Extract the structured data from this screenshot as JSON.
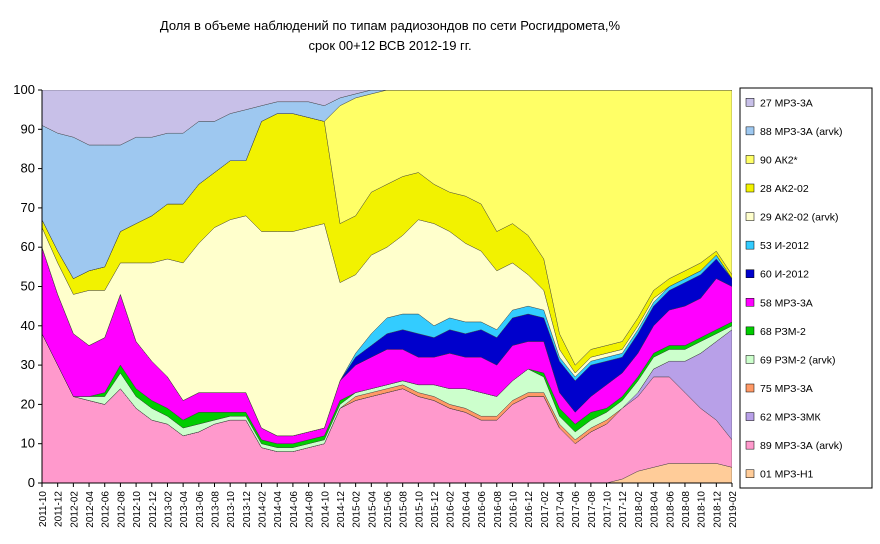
{
  "chart_data": {
    "type": "stacked_area",
    "title": "Доля в объеме наблюдений по типам радиозондов по сети Росгидромета,%",
    "subtitle": "срок 00+12 ВСВ 2012-19 гг.",
    "categories": [
      "2011-10",
      "2011-12",
      "2012-02",
      "2012-04",
      "2012-06",
      "2012-08",
      "2012-10",
      "2012-12",
      "2013-02",
      "2013-04",
      "2013-06",
      "2013-08",
      "2013-10",
      "2013-12",
      "2014-02",
      "2014-04",
      "2014-06",
      "2014-08",
      "2014-10",
      "2014-12",
      "2015-02",
      "2015-04",
      "2015-06",
      "2015-08",
      "2015-10",
      "2015-12",
      "2016-02",
      "2016-04",
      "2016-06",
      "2016-08",
      "2016-10",
      "2016-12",
      "2017-02",
      "2017-04",
      "2017-06",
      "2017-08",
      "2017-10",
      "2017-12",
      "2018-02",
      "2018-04",
      "2018-06",
      "2018-08",
      "2018-10",
      "2018-12",
      "2019-02"
    ],
    "ylim": [
      0,
      100
    ],
    "yticks": [
      0,
      10,
      20,
      30,
      40,
      50,
      60,
      70,
      80,
      90,
      100
    ],
    "legend": "right",
    "series": [
      {
        "name": "01 МРЗ-Н1",
        "color": "#ffcc99",
        "values": [
          0,
          0,
          0,
          0,
          0,
          0,
          0,
          0,
          0,
          0,
          0,
          0,
          0,
          0,
          0,
          0,
          0,
          0,
          0,
          0,
          0,
          0,
          0,
          0,
          0,
          0,
          0,
          0,
          0,
          0,
          0,
          0,
          0,
          0,
          0,
          0,
          0,
          1,
          3,
          4,
          5,
          5,
          5,
          5,
          4
        ]
      },
      {
        "name": "89 МРЗ-3А (arvk)",
        "color": "#ff99cc",
        "values": [
          38,
          30,
          22,
          21,
          20,
          24,
          19,
          16,
          15,
          12,
          13,
          15,
          16,
          16,
          9,
          8,
          8,
          9,
          10,
          19,
          21,
          22,
          23,
          24,
          22,
          21,
          19,
          18,
          16,
          16,
          20,
          22,
          22,
          14,
          10,
          13,
          15,
          18,
          19,
          23,
          22,
          18,
          14,
          11,
          7
        ]
      },
      {
        "name": "62 МРЗ-3МК",
        "color": "#b8a0e8",
        "values": [
          0,
          0,
          0,
          0,
          0,
          0,
          0,
          0,
          0,
          0,
          0,
          0,
          0,
          0,
          0,
          0,
          0,
          0,
          0,
          0,
          0,
          0,
          0,
          0,
          0,
          0,
          0,
          0,
          0,
          0,
          0,
          0,
          0,
          0,
          0,
          0,
          0,
          0,
          1,
          2,
          4,
          8,
          14,
          20,
          28
        ]
      },
      {
        "name": "75 МРЗ-3А",
        "color": "#ff9966",
        "values": [
          0,
          0,
          0,
          0,
          0,
          0,
          0,
          0,
          0,
          0,
          0,
          0,
          0,
          0,
          0,
          0,
          0,
          0,
          0,
          0,
          1,
          1,
          1,
          1,
          1,
          1,
          1,
          1,
          1,
          1,
          1,
          1,
          1,
          1,
          1,
          1,
          1,
          0,
          0,
          0,
          0,
          0,
          0,
          0,
          0
        ]
      },
      {
        "name": "69 РЗМ-2 (arvk)",
        "color": "#ccffcc",
        "values": [
          0,
          0,
          0,
          1,
          2,
          4,
          3,
          3,
          2,
          2,
          2,
          1,
          1,
          1,
          1,
          1,
          1,
          1,
          1,
          1,
          1,
          1,
          1,
          1,
          2,
          3,
          4,
          5,
          6,
          5,
          5,
          6,
          4,
          2,
          2,
          2,
          2,
          2,
          3,
          3,
          3,
          3,
          3,
          2,
          1
        ]
      },
      {
        "name": "68 РЗМ-2",
        "color": "#00cc00",
        "values": [
          0,
          0,
          0,
          0,
          1,
          2,
          2,
          2,
          2,
          2,
          3,
          2,
          1,
          1,
          1,
          1,
          1,
          1,
          1,
          1,
          0,
          0,
          0,
          0,
          0,
          0,
          0,
          0,
          0,
          0,
          0,
          0,
          1,
          2,
          2,
          2,
          1,
          1,
          1,
          1,
          1,
          1,
          1,
          1,
          1
        ]
      },
      {
        "name": "58 МРЗ-3А",
        "color": "#ff00ff",
        "values": [
          22,
          18,
          16,
          13,
          14,
          18,
          12,
          10,
          8,
          5,
          5,
          5,
          5,
          5,
          3,
          2,
          2,
          2,
          2,
          5,
          7,
          8,
          9,
          8,
          7,
          7,
          9,
          8,
          9,
          8,
          9,
          7,
          8,
          4,
          3,
          4,
          6,
          6,
          6,
          7,
          9,
          10,
          10,
          13,
          9
        ]
      },
      {
        "name": "60 И-2012",
        "color": "#0000cc",
        "values": [
          0,
          0,
          0,
          0,
          0,
          0,
          0,
          0,
          0,
          0,
          0,
          0,
          0,
          0,
          0,
          0,
          0,
          0,
          0,
          0,
          2,
          3,
          4,
          5,
          6,
          5,
          6,
          6,
          7,
          7,
          7,
          7,
          6,
          8,
          8,
          8,
          6,
          4,
          5,
          5,
          5,
          6,
          6,
          5,
          2
        ]
      },
      {
        "name": "53 И-2012",
        "color": "#33ccff",
        "values": [
          0,
          0,
          0,
          0,
          0,
          0,
          0,
          0,
          0,
          0,
          0,
          0,
          0,
          0,
          0,
          0,
          0,
          0,
          0,
          0,
          1,
          3,
          4,
          4,
          5,
          3,
          3,
          3,
          2,
          2,
          2,
          2,
          2,
          1,
          1,
          1,
          1,
          1,
          1,
          1,
          1,
          1,
          1,
          1,
          0
        ]
      },
      {
        "name": "29 АК2-02 (arvk)",
        "color": "#ffffcc",
        "values": [
          5,
          8,
          10,
          14,
          12,
          8,
          20,
          25,
          30,
          35,
          38,
          42,
          44,
          45,
          50,
          52,
          52,
          52,
          52,
          25,
          20,
          20,
          18,
          20,
          24,
          26,
          22,
          20,
          18,
          15,
          12,
          8,
          5,
          2,
          1,
          1,
          1,
          1,
          1,
          1,
          0,
          0,
          0,
          0,
          0
        ]
      },
      {
        "name": "28 АК2-02",
        "color": "#f2f200",
        "values": [
          2,
          3,
          4,
          5,
          6,
          8,
          10,
          12,
          14,
          15,
          15,
          14,
          15,
          14,
          28,
          30,
          30,
          28,
          26,
          15,
          15,
          16,
          16,
          15,
          12,
          10,
          10,
          12,
          12,
          10,
          10,
          10,
          8,
          4,
          2,
          2,
          2,
          2,
          2,
          2,
          2,
          2,
          2,
          1,
          1
        ]
      },
      {
        "name": "90 АК2*",
        "color": "#ffff66",
        "values": [
          0,
          0,
          0,
          0,
          0,
          0,
          0,
          0,
          0,
          0,
          0,
          0,
          0,
          0,
          0,
          0,
          0,
          0,
          0,
          30,
          30,
          25,
          24,
          22,
          21,
          24,
          26,
          27,
          29,
          36,
          34,
          37,
          43,
          62,
          70,
          66,
          65,
          64,
          58,
          51,
          48,
          46,
          44,
          41,
          47
        ]
      },
      {
        "name": "88 МРЗ-3А (arvk)",
        "color": "#9ec8f0",
        "values": [
          24,
          30,
          36,
          32,
          31,
          22,
          22,
          20,
          18,
          18,
          16,
          13,
          12,
          13,
          4,
          3,
          3,
          4,
          4,
          2,
          1,
          1,
          0,
          0,
          0,
          0,
          0,
          0,
          0,
          0,
          0,
          0,
          0,
          0,
          0,
          0,
          0,
          0,
          0,
          0,
          0,
          0,
          0,
          0,
          0
        ]
      },
      {
        "name": "27 МРЗ-3А",
        "color": "#c8c0e8",
        "values": [
          9,
          11,
          12,
          14,
          14,
          14,
          12,
          12,
          11,
          11,
          8,
          8,
          6,
          5,
          4,
          3,
          3,
          3,
          4,
          2,
          1,
          0,
          0,
          0,
          0,
          0,
          0,
          0,
          0,
          0,
          0,
          0,
          0,
          0,
          0,
          0,
          0,
          0,
          0,
          0,
          0,
          0,
          0,
          0,
          0
        ]
      }
    ]
  }
}
